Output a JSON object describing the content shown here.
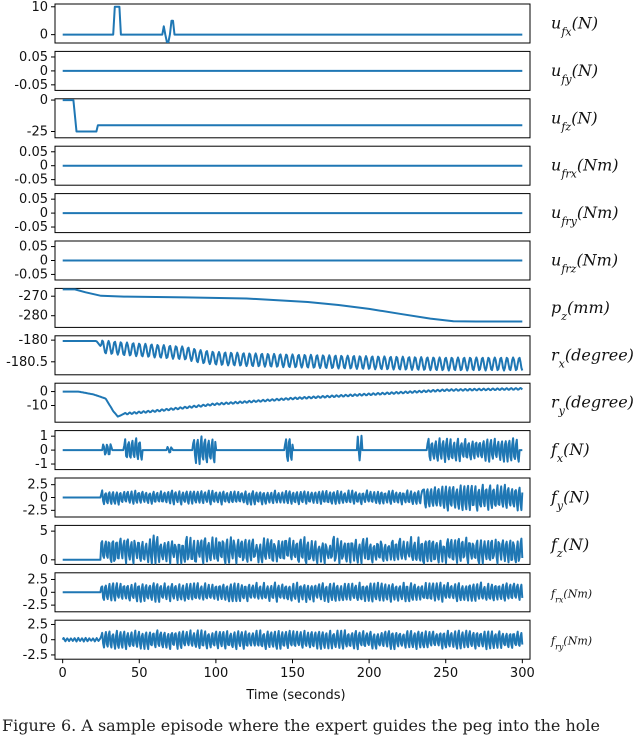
{
  "caption": "Figure 6. A sample episode where the expert guides the peg into the hole",
  "chart_data": {
    "type": "line",
    "xlabel": "Time (seconds)",
    "xlim": [
      -5,
      305
    ],
    "xticks": [
      0,
      50,
      100,
      150,
      200,
      250,
      300
    ],
    "xtick_labels": [
      "0",
      "50",
      "100",
      "150",
      "200",
      "250",
      "300"
    ],
    "panels": [
      {
        "id": "ufx",
        "label": "u_fx(N)",
        "ylim": [
          -3,
          11
        ],
        "yticks": [
          0,
          10
        ],
        "ytick_labels": [
          "0",
          "10"
        ],
        "x": [
          0,
          33,
          34,
          37,
          38,
          65,
          66,
          67,
          68,
          69,
          70,
          71,
          72,
          73,
          300
        ],
        "y": [
          0,
          0,
          10,
          10,
          0,
          0,
          3,
          0,
          -3,
          -3,
          0,
          5,
          5,
          0,
          0
        ]
      },
      {
        "id": "ufy",
        "label": "u_fy(N)",
        "ylim": [
          -0.07,
          0.07
        ],
        "yticks": [
          0.05,
          0,
          -0.05
        ],
        "ytick_labels": [
          "0.05",
          "0",
          "-0.05"
        ],
        "x": [
          0,
          300
        ],
        "y": [
          0,
          0
        ]
      },
      {
        "id": "ufz",
        "label": "u_fz(N)",
        "ylim": [
          -30,
          1
        ],
        "yticks": [
          0,
          -25
        ],
        "ytick_labels": [
          "0",
          "-25"
        ],
        "x": [
          0,
          7,
          9,
          22,
          23,
          300
        ],
        "y": [
          0,
          0,
          -25,
          -25,
          -20,
          -20
        ]
      },
      {
        "id": "ufrx",
        "label": "u_frx(Nm)",
        "ylim": [
          -0.07,
          0.07
        ],
        "yticks": [
          0.05,
          0,
          -0.05
        ],
        "ytick_labels": [
          "0.05",
          "0",
          "-0.05"
        ],
        "x": [
          0,
          300
        ],
        "y": [
          0,
          0
        ]
      },
      {
        "id": "ufry",
        "label": "u_fry(Nm)",
        "ylim": [
          -0.07,
          0.07
        ],
        "yticks": [
          0.05,
          0,
          -0.05
        ],
        "ytick_labels": [
          "0.05",
          "0",
          "-0.05"
        ],
        "x": [
          0,
          300
        ],
        "y": [
          0,
          0
        ]
      },
      {
        "id": "ufrz",
        "label": "u_frz(Nm)",
        "ylim": [
          -0.07,
          0.07
        ],
        "yticks": [
          0.05,
          0,
          -0.05
        ],
        "ytick_labels": [
          "0.05",
          "0",
          "-0.05"
        ],
        "x": [
          0,
          300
        ],
        "y": [
          0,
          0
        ]
      },
      {
        "id": "pz",
        "label": "p_z(mm)",
        "ylim": [
          -286,
          -266
        ],
        "yticks": [
          -270,
          -280
        ],
        "ytick_labels": [
          "-270",
          "-280"
        ],
        "x": [
          0,
          8,
          15,
          25,
          40,
          80,
          120,
          160,
          180,
          200,
          220,
          240,
          255,
          270,
          300
        ],
        "y": [
          -266.5,
          -266.5,
          -268,
          -269.8,
          -270.2,
          -270.6,
          -271.2,
          -273,
          -274.5,
          -276.5,
          -279,
          -281.5,
          -282.8,
          -283,
          -283
        ]
      },
      {
        "id": "rx",
        "label": "r_x(degree)",
        "ylim": [
          -180.8,
          -179.9
        ],
        "yticks": [
          -180,
          -180.5
        ],
        "ytick_labels": [
          "-180",
          "-180.5"
        ],
        "x": [
          0,
          22,
          25,
          40,
          60,
          80,
          90,
          100,
          120,
          150,
          200,
          250,
          300
        ],
        "y": [
          -180.02,
          -180.02,
          -180.15,
          -180.2,
          -180.25,
          -180.3,
          -180.38,
          -180.42,
          -180.45,
          -180.48,
          -180.52,
          -180.55,
          -180.55
        ],
        "oscillation": {
          "start": 25,
          "end": 300,
          "amplitude": 0.15,
          "period": 4
        }
      },
      {
        "id": "ry",
        "label": "r_y(degree)",
        "ylim": [
          -22,
          6
        ],
        "yticks": [
          0,
          -10
        ],
        "ytick_labels": [
          "0",
          "-10"
        ],
        "x": [
          0,
          10,
          20,
          28,
          33,
          36,
          40,
          60,
          100,
          150,
          200,
          250,
          300
        ],
        "y": [
          0,
          0,
          -2,
          -5,
          -14,
          -18,
          -16,
          -14,
          -9,
          -5,
          -2,
          1,
          2
        ],
        "oscillation": {
          "start": 40,
          "end": 300,
          "amplitude": 0.6,
          "period": 3
        }
      },
      {
        "id": "fx",
        "label": "f_x(N)",
        "ylim": [
          -1.4,
          1.4
        ],
        "yticks": [
          1,
          0,
          -1
        ],
        "ytick_labels": [
          "1",
          "0",
          "-1"
        ],
        "x": [
          0,
          300
        ],
        "y": [
          0,
          0
        ],
        "bursts": [
          {
            "start": 26,
            "end": 32,
            "amplitude": 0.6
          },
          {
            "start": 40,
            "end": 52,
            "amplitude": 1.0
          },
          {
            "start": 68,
            "end": 72,
            "amplitude": 0.3
          },
          {
            "start": 85,
            "end": 100,
            "amplitude": 1.2
          },
          {
            "start": 145,
            "end": 150,
            "amplitude": 1.2
          },
          {
            "start": 192,
            "end": 196,
            "amplitude": 1.1
          },
          {
            "start": 238,
            "end": 298,
            "amplitude": 1.0
          }
        ]
      },
      {
        "id": "fy",
        "label": "f_y(N)",
        "ylim": [
          -3.8,
          3.8
        ],
        "yticks": [
          2.5,
          0,
          -2.5
        ],
        "ytick_labels": [
          "2.5",
          "0",
          "-2.5"
        ],
        "x": [
          0,
          300
        ],
        "y": [
          0,
          0
        ],
        "bursts": [
          {
            "start": 25,
            "end": 235,
            "amplitude": 1.6
          },
          {
            "start": 235,
            "end": 300,
            "amplitude": 3.0
          }
        ]
      },
      {
        "id": "fz",
        "label": "f_z(N)",
        "ylim": [
          -0.8,
          6
        ],
        "yticks": [
          5,
          0
        ],
        "ytick_labels": [
          "5",
          "0"
        ],
        "x": [
          0,
          300
        ],
        "y": [
          0,
          0
        ],
        "bursts": [
          {
            "start": 25,
            "end": 300,
            "amplitude": 2.5,
            "offset": 2.2
          }
        ]
      },
      {
        "id": "frx",
        "label": "f_rx(Nm)",
        "small": true,
        "ylim": [
          -3.8,
          3.8
        ],
        "yticks": [
          2.5,
          0,
          -2.5
        ],
        "ytick_labels": [
          "2.5",
          "0",
          "-2.5"
        ],
        "x": [
          0,
          300
        ],
        "y": [
          0,
          0
        ],
        "bursts": [
          {
            "start": 25,
            "end": 300,
            "amplitude": 2.2
          }
        ]
      },
      {
        "id": "fry",
        "label": "f_ry(Nm)",
        "small": true,
        "ylim": [
          -3.2,
          3.2
        ],
        "yticks": [
          2.5,
          0,
          -2.5
        ],
        "ytick_labels": [
          "2.5",
          "0",
          "-2.5"
        ],
        "x": [
          0,
          300
        ],
        "y": [
          0,
          0
        ],
        "bursts": [
          {
            "start": 0,
            "end": 25,
            "amplitude": 0.3
          },
          {
            "start": 25,
            "end": 300,
            "amplitude": 1.8
          }
        ]
      }
    ]
  }
}
